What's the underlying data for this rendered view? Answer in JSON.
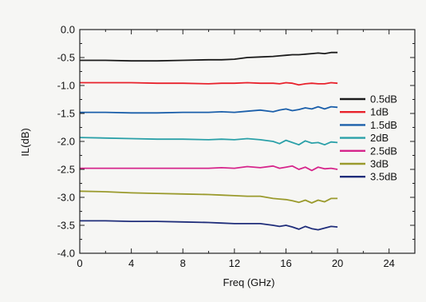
{
  "chart_data": {
    "type": "line",
    "title": "",
    "xlabel": "Freq (GHz)",
    "ylabel": "IL(dB)",
    "xlim": [
      0,
      26
    ],
    "ylim": [
      -4.0,
      0.0
    ],
    "x_ticks": [
      "0",
      "4",
      "8",
      "12",
      "16",
      "20",
      "24"
    ],
    "y_ticks": [
      "0.0",
      "-0.5",
      "-1.0",
      "-1.5",
      "-2.0",
      "-2.5",
      "-3.0",
      "-3.5",
      "-4.0"
    ],
    "grid": false,
    "legend_position": "right",
    "x": [
      0,
      2,
      4,
      6,
      8,
      10,
      11,
      12,
      13,
      14,
      15,
      15.5,
      16,
      16.5,
      17,
      17.5,
      18,
      18.5,
      19,
      19.5,
      20
    ],
    "series": [
      {
        "name": "0.5dB",
        "color": "#1a1a1a",
        "values": [
          -0.55,
          -0.55,
          -0.56,
          -0.56,
          -0.55,
          -0.54,
          -0.54,
          -0.53,
          -0.5,
          -0.49,
          -0.48,
          -0.47,
          -0.46,
          -0.45,
          -0.45,
          -0.44,
          -0.43,
          -0.42,
          -0.43,
          -0.41,
          -0.41
        ]
      },
      {
        "name": "1dB",
        "color": "#e8212b",
        "values": [
          -0.95,
          -0.95,
          -0.95,
          -0.96,
          -0.96,
          -0.97,
          -0.96,
          -0.96,
          -0.95,
          -0.96,
          -0.96,
          -0.97,
          -0.95,
          -0.96,
          -0.99,
          -0.97,
          -0.96,
          -0.97,
          -0.97,
          -0.95,
          -0.96
        ]
      },
      {
        "name": "1.5dB",
        "color": "#1b5faa",
        "values": [
          -1.48,
          -1.48,
          -1.49,
          -1.49,
          -1.48,
          -1.48,
          -1.47,
          -1.48,
          -1.46,
          -1.44,
          -1.47,
          -1.44,
          -1.42,
          -1.45,
          -1.43,
          -1.4,
          -1.42,
          -1.38,
          -1.42,
          -1.38,
          -1.39
        ]
      },
      {
        "name": "2dB",
        "color": "#2aa0a8",
        "values": [
          -1.93,
          -1.94,
          -1.95,
          -1.96,
          -1.96,
          -1.97,
          -1.96,
          -1.97,
          -1.95,
          -1.97,
          -2.0,
          -2.04,
          -1.98,
          -2.02,
          -2.06,
          -1.99,
          -2.03,
          -2.02,
          -2.06,
          -2.01,
          -2.02
        ]
      },
      {
        "name": "2.5dB",
        "color": "#d6258b",
        "values": [
          -2.48,
          -2.48,
          -2.48,
          -2.48,
          -2.48,
          -2.48,
          -2.47,
          -2.48,
          -2.45,
          -2.47,
          -2.44,
          -2.48,
          -2.46,
          -2.44,
          -2.5,
          -2.46,
          -2.52,
          -2.46,
          -2.49,
          -2.48,
          -2.5
        ]
      },
      {
        "name": "3dB",
        "color": "#9a9a2c",
        "values": [
          -2.89,
          -2.9,
          -2.92,
          -2.93,
          -2.94,
          -2.95,
          -2.96,
          -2.97,
          -2.98,
          -2.98,
          -3.02,
          -3.03,
          -3.04,
          -3.06,
          -3.09,
          -3.05,
          -3.1,
          -3.05,
          -3.08,
          -3.02,
          -3.02
        ]
      },
      {
        "name": "3.5dB",
        "color": "#1f2d7a",
        "values": [
          -3.42,
          -3.42,
          -3.43,
          -3.43,
          -3.44,
          -3.45,
          -3.46,
          -3.47,
          -3.47,
          -3.47,
          -3.5,
          -3.52,
          -3.5,
          -3.53,
          -3.57,
          -3.52,
          -3.56,
          -3.58,
          -3.55,
          -3.52,
          -3.53
        ]
      }
    ]
  }
}
